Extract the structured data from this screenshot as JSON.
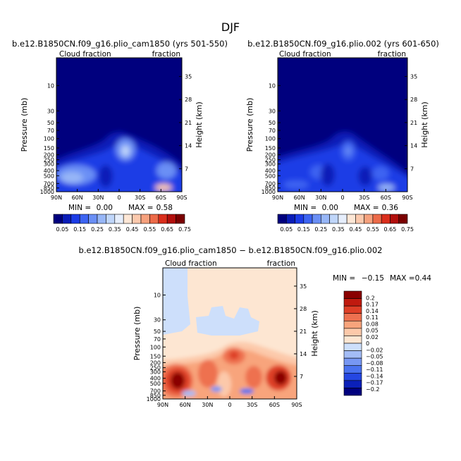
{
  "figure": {
    "season": "DJF"
  },
  "colors": {
    "top_palette": [
      "#00007e",
      "#0a1db8",
      "#1c3ce6",
      "#3d64f2",
      "#6a8ff5",
      "#97b6f7",
      "#c0d6fa",
      "#e6eefc",
      "#fde7d6",
      "#fbc9ad",
      "#f6a17d",
      "#ec6a48",
      "#da2e1c",
      "#b20f0c",
      "#7a0000"
    ],
    "diff_palette": [
      "#00007e",
      "#0b20b9",
      "#2547e2",
      "#4a72ef",
      "#7797f3",
      "#a3bcf6",
      "#cddffb",
      "#fde6d2",
      "#fcc9aa",
      "#f8a47c",
      "#ee7150",
      "#de3f27",
      "#c01a0f",
      "#8a0000"
    ]
  },
  "chart_data": [
    {
      "type": "heatmap",
      "title": "b.e12.B1850CN.f09_g16.plio_cam1850 (yrs 501-550)",
      "left_label": "Cloud fraction",
      "right_label": "fraction",
      "ylabel": "Pressure (mb)",
      "ylabel_right": "Height (km)",
      "x_ticks": [
        "90N",
        "60N",
        "30N",
        "0",
        "30S",
        "60S",
        "90S"
      ],
      "x_values": [
        90,
        60,
        30,
        0,
        -30,
        -60,
        -90
      ],
      "y_ticks": [
        "10",
        "30",
        "50",
        "70",
        "100",
        "150",
        "200",
        "250",
        "300",
        "400",
        "500",
        "700",
        "850",
        "1000"
      ],
      "y_values": [
        10,
        30,
        50,
        70,
        100,
        150,
        200,
        250,
        300,
        400,
        500,
        700,
        850,
        1000
      ],
      "height_ticks": [
        "35",
        "28",
        "21",
        "14",
        "7"
      ],
      "height_values": [
        35,
        28,
        21,
        14,
        7
      ],
      "ylim": [
        3,
        1000
      ],
      "scale": "log",
      "min_label": "MIN =",
      "min": "0.00",
      "max_label": "MAX =",
      "max": "0.58",
      "colorbar_labels": [
        "0.05",
        "0.15",
        "0.25",
        "0.35",
        "0.45",
        "0.55",
        "0.65",
        "0.75"
      ]
    },
    {
      "type": "heatmap",
      "title": "b.e12.B1850CN.f09_g16.plio.002 (yrs 601-650)",
      "left_label": "Cloud fraction",
      "right_label": "fraction",
      "ylabel": "Pressure (mb)",
      "ylabel_right": "Height (km)",
      "x_ticks": [
        "90N",
        "60N",
        "30N",
        "0",
        "30S",
        "60S",
        "90S"
      ],
      "x_values": [
        90,
        60,
        30,
        0,
        -30,
        -60,
        -90
      ],
      "y_ticks": [
        "10",
        "30",
        "50",
        "70",
        "100",
        "150",
        "200",
        "250",
        "300",
        "400",
        "500",
        "700",
        "850",
        "1000"
      ],
      "y_values": [
        10,
        30,
        50,
        70,
        100,
        150,
        200,
        250,
        300,
        400,
        500,
        700,
        850,
        1000
      ],
      "height_ticks": [
        "35",
        "28",
        "21",
        "14",
        "7"
      ],
      "height_values": [
        35,
        28,
        21,
        14,
        7
      ],
      "ylim": [
        3,
        1000
      ],
      "scale": "log",
      "min_label": "MIN =",
      "min": "0.00",
      "max_label": "MAX =",
      "max": "0.36",
      "colorbar_labels": [
        "0.05",
        "0.15",
        "0.25",
        "0.35",
        "0.45",
        "0.55",
        "0.65",
        "0.75"
      ]
    },
    {
      "type": "heatmap",
      "title": "b.e12.B1850CN.f09_g16.plio_cam1850 − b.e12.B1850CN.f09_g16.plio.002",
      "left_label": "Cloud fraction",
      "right_label": "fraction",
      "ylabel": "Pressure (mb)",
      "ylabel_right": "Height (km)",
      "x_ticks": [
        "90N",
        "60N",
        "30N",
        "0",
        "30S",
        "60S",
        "90S"
      ],
      "x_values": [
        90,
        60,
        30,
        0,
        -30,
        -60,
        -90
      ],
      "y_ticks": [
        "10",
        "30",
        "50",
        "70",
        "100",
        "150",
        "200",
        "250",
        "300",
        "400",
        "500",
        "700",
        "850",
        "1000"
      ],
      "y_values": [
        10,
        30,
        50,
        70,
        100,
        150,
        200,
        250,
        300,
        400,
        500,
        700,
        850,
        1000
      ],
      "height_ticks": [
        "35",
        "28",
        "21",
        "14",
        "7"
      ],
      "height_values": [
        35,
        28,
        21,
        14,
        7
      ],
      "ylim": [
        3,
        1000
      ],
      "scale": "log",
      "min_label": "MIN =",
      "min": "−0.15",
      "max_label": "MAX =",
      "max": "0.44",
      "colorbar_labels": [
        "0.2",
        "0.17",
        "0.14",
        "0.11",
        "0.08",
        "0.05",
        "0.02",
        "0",
        "−0.02",
        "−0.05",
        "−0.08",
        "−0.11",
        "−0.14",
        "−0.17",
        "−0.2"
      ]
    }
  ]
}
